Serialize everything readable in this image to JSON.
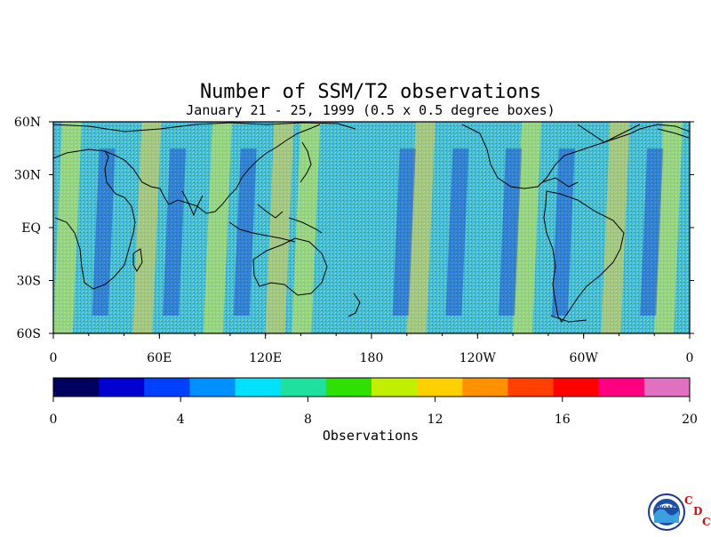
{
  "title": "Number of SSM/T2 observations",
  "subtitle": "January 21 - 25, 1999 (0.5 x 0.5 degree boxes)",
  "map": {
    "projection": "cylindrical equidistant",
    "lon_range": [
      0,
      360
    ],
    "lat_range": [
      -60,
      60
    ],
    "y_ticks": [
      "60N",
      "30N",
      "EQ",
      "30S",
      "60S"
    ],
    "x_ticks": [
      "0",
      "60E",
      "120E",
      "180",
      "120W",
      "60W",
      "0"
    ],
    "high_count_bands_deg_lon": [
      10,
      55,
      95,
      130,
      145,
      210,
      270,
      320,
      350
    ],
    "low_count_bands_deg_lon": [
      30,
      70,
      110,
      200,
      230,
      260,
      290,
      340
    ]
  },
  "colorbar": {
    "title": "Observations",
    "min": 0,
    "max": 20,
    "tick_labels": [
      "0",
      "4",
      "8",
      "12",
      "16",
      "20"
    ],
    "colors": [
      "#000060",
      "#0000d0",
      "#0040ff",
      "#0090ff",
      "#00e0ff",
      "#20e0a0",
      "#30e000",
      "#c0f000",
      "#ffd000",
      "#ff9000",
      "#ff4000",
      "#ff0000",
      "#ff0080",
      "#e070c0"
    ]
  },
  "logo": {
    "icon": "noaa-logo",
    "text": "NOAA",
    "cdc_letters": [
      "C",
      "D",
      "C"
    ]
  }
}
